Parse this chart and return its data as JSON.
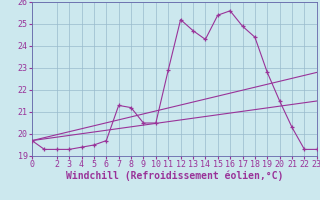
{
  "xlabel": "Windchill (Refroidissement éolien,°C)",
  "background_color": "#cce8ee",
  "line_color": "#993399",
  "grid_color": "#99bbcc",
  "spine_color": "#6666aa",
  "xlim": [
    0,
    23
  ],
  "ylim": [
    19,
    26
  ],
  "yticks": [
    19,
    20,
    21,
    22,
    23,
    24,
    25,
    26
  ],
  "xticks": [
    0,
    2,
    3,
    4,
    5,
    6,
    7,
    8,
    9,
    10,
    11,
    12,
    13,
    14,
    15,
    16,
    17,
    18,
    19,
    20,
    21,
    22,
    23
  ],
  "line1_x": [
    0,
    1,
    2,
    3,
    4,
    5,
    6,
    7,
    8,
    9,
    10,
    11,
    12,
    13,
    14,
    15,
    16,
    17,
    18,
    19,
    20,
    21,
    22,
    23
  ],
  "line1_y": [
    19.7,
    19.3,
    19.3,
    19.3,
    19.4,
    19.5,
    19.7,
    21.3,
    21.2,
    20.5,
    20.5,
    22.9,
    25.2,
    24.7,
    24.3,
    25.4,
    25.6,
    24.9,
    24.4,
    22.8,
    21.5,
    20.3,
    19.3,
    19.3
  ],
  "line2_x": [
    0,
    23
  ],
  "line2_y": [
    19.7,
    22.8
  ],
  "line3_x": [
    0,
    23
  ],
  "line3_y": [
    19.7,
    21.5
  ],
  "xlabel_fontsize": 7,
  "tick_fontsize": 6
}
